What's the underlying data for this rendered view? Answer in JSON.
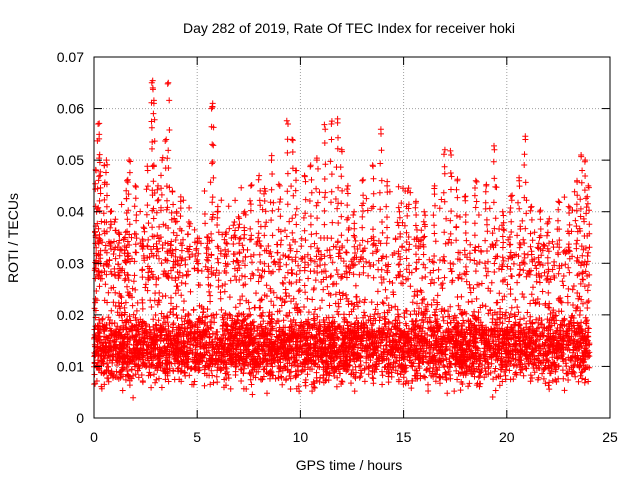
{
  "chart_data": {
    "type": "scatter",
    "title": "Day 282 of 2019, Rate Of TEC Index for receiver hoki",
    "xlabel": "GPS time / hours",
    "ylabel": "ROTI / TECUs",
    "xlim": [
      0,
      25
    ],
    "ylim": [
      0,
      0.07
    ],
    "xticks": [
      0,
      5,
      10,
      15,
      20,
      25
    ],
    "yticks": [
      0,
      0.01,
      0.02,
      0.03,
      0.04,
      0.05,
      0.06,
      0.07
    ],
    "xtick_labels": [
      "0",
      "5",
      "10",
      "15",
      "20",
      "25"
    ],
    "ytick_labels": [
      "0",
      "0.01",
      "0.02",
      "0.03",
      "0.04",
      "0.05",
      "0.06",
      "0.07"
    ],
    "grid": true,
    "marker": "+",
    "marker_color": "#ff0000",
    "x_data_range": [
      0,
      24
    ],
    "series": [
      {
        "values_summary": "dense scatter mostly between 0.005 and 0.03, spikes to ~0.065",
        "points": [
          [
            0.05,
            0.036
          ],
          [
            0.1,
            0.048
          ],
          [
            0.2,
            0.057
          ],
          [
            0.25,
            0.055
          ],
          [
            0.3,
            0.047
          ],
          [
            0.5,
            0.049
          ],
          [
            0.6,
            0.05
          ],
          [
            0.8,
            0.04
          ],
          [
            1.0,
            0.038
          ],
          [
            1.2,
            0.036
          ],
          [
            1.5,
            0.035
          ],
          [
            1.6,
            0.046
          ],
          [
            1.7,
            0.05
          ],
          [
            2.0,
            0.045
          ],
          [
            2.4,
            0.037
          ],
          [
            2.6,
            0.048
          ],
          [
            2.8,
            0.065
          ],
          [
            2.85,
            0.064
          ],
          [
            2.9,
            0.061
          ],
          [
            3.1,
            0.045
          ],
          [
            3.3,
            0.05
          ],
          [
            3.5,
            0.054
          ],
          [
            3.6,
            0.065
          ],
          [
            3.8,
            0.044
          ],
          [
            4.0,
            0.04
          ],
          [
            4.2,
            0.042
          ],
          [
            4.6,
            0.038
          ],
          [
            5.0,
            0.034
          ],
          [
            5.5,
            0.035
          ],
          [
            5.7,
            0.06
          ],
          [
            5.75,
            0.061
          ],
          [
            6.0,
            0.041
          ],
          [
            6.4,
            0.036
          ],
          [
            6.8,
            0.038
          ],
          [
            7.0,
            0.039
          ],
          [
            7.3,
            0.04
          ],
          [
            7.6,
            0.045
          ],
          [
            8.0,
            0.047
          ],
          [
            8.3,
            0.044
          ],
          [
            8.6,
            0.05
          ],
          [
            9.0,
            0.045
          ],
          [
            9.4,
            0.057
          ],
          [
            9.6,
            0.054
          ],
          [
            9.8,
            0.048
          ],
          [
            10.2,
            0.047
          ],
          [
            10.5,
            0.049
          ],
          [
            10.8,
            0.05
          ],
          [
            11.2,
            0.056
          ],
          [
            11.5,
            0.057
          ],
          [
            11.8,
            0.058
          ],
          [
            12.0,
            0.052
          ],
          [
            12.3,
            0.045
          ],
          [
            12.6,
            0.04
          ],
          [
            13.0,
            0.046
          ],
          [
            13.5,
            0.049
          ],
          [
            13.9,
            0.056
          ],
          [
            14.2,
            0.045
          ],
          [
            14.8,
            0.04
          ],
          [
            15.2,
            0.044
          ],
          [
            15.6,
            0.042
          ],
          [
            16.0,
            0.04
          ],
          [
            16.5,
            0.045
          ],
          [
            17.0,
            0.052
          ],
          [
            17.3,
            0.051
          ],
          [
            17.6,
            0.046
          ],
          [
            18.0,
            0.043
          ],
          [
            18.5,
            0.046
          ],
          [
            19.0,
            0.045
          ],
          [
            19.4,
            0.052
          ],
          [
            19.8,
            0.04
          ],
          [
            20.2,
            0.043
          ],
          [
            20.6,
            0.046
          ],
          [
            20.9,
            0.054
          ],
          [
            21.2,
            0.041
          ],
          [
            21.6,
            0.04
          ],
          [
            22.0,
            0.038
          ],
          [
            22.5,
            0.042
          ],
          [
            23.0,
            0.041
          ],
          [
            23.4,
            0.046
          ],
          [
            23.6,
            0.051
          ],
          [
            23.8,
            0.05
          ],
          [
            23.95,
            0.045
          ]
        ]
      }
    ]
  }
}
